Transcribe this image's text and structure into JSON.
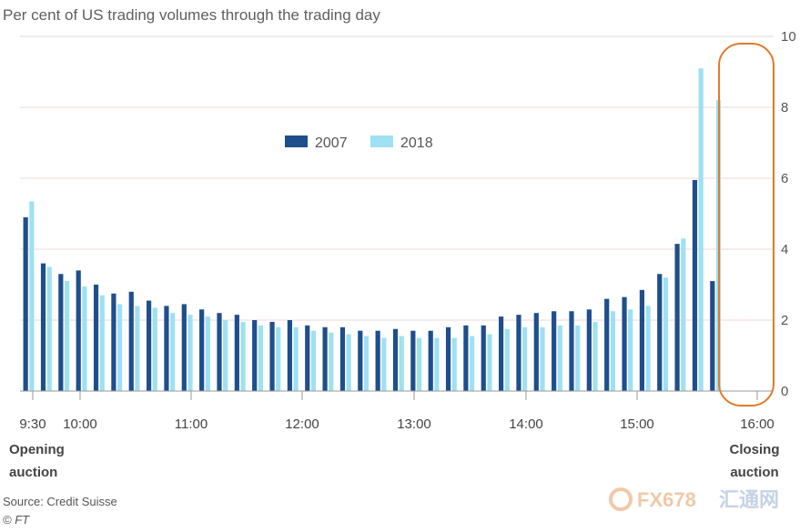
{
  "chart_data": {
    "type": "bar",
    "title": "Per cent of US trading volumes through the trading day",
    "ylim": [
      0,
      10
    ],
    "yticks": [
      0,
      2,
      4,
      6,
      8,
      10
    ],
    "grid": true,
    "legend_position": "top-center",
    "x_tick_labels": [
      "9:30",
      "10:00",
      "11:00",
      "12:00",
      "13:00",
      "14:00",
      "15:00",
      "16:00"
    ],
    "series": [
      {
        "name": "2007",
        "color": "#1f4e8c",
        "values": [
          4.9,
          3.6,
          3.3,
          3.4,
          3.0,
          2.75,
          2.8,
          2.55,
          2.4,
          2.45,
          2.3,
          2.2,
          2.15,
          2.0,
          1.95,
          2.0,
          1.85,
          1.8,
          1.8,
          1.7,
          1.7,
          1.75,
          1.7,
          1.7,
          1.8,
          1.85,
          1.85,
          2.1,
          2.15,
          2.2,
          2.25,
          2.25,
          2.3,
          2.6,
          2.65,
          2.85,
          3.3,
          4.15,
          5.95,
          3.1
        ]
      },
      {
        "name": "2018",
        "color": "#9fe0f2",
        "values": [
          5.35,
          3.5,
          3.1,
          2.95,
          2.7,
          2.45,
          2.4,
          2.35,
          2.2,
          2.15,
          2.1,
          2.0,
          1.95,
          1.85,
          1.8,
          1.8,
          1.7,
          1.65,
          1.6,
          1.55,
          1.5,
          1.55,
          1.5,
          1.5,
          1.5,
          1.55,
          1.6,
          1.75,
          1.8,
          1.8,
          1.85,
          1.85,
          1.95,
          2.25,
          2.3,
          2.4,
          3.2,
          4.3,
          9.1,
          8.2
        ]
      }
    ],
    "annotations": {
      "opening": [
        "Opening",
        "auction"
      ],
      "closing": [
        "Closing",
        "auction"
      ]
    },
    "highlight_color": "#e07b2a"
  },
  "footer": {
    "source": "Source: Credit Suisse",
    "credit": "© FT"
  },
  "watermark": {
    "logo_text": "FX678",
    "logo_text2": "汇通网"
  }
}
